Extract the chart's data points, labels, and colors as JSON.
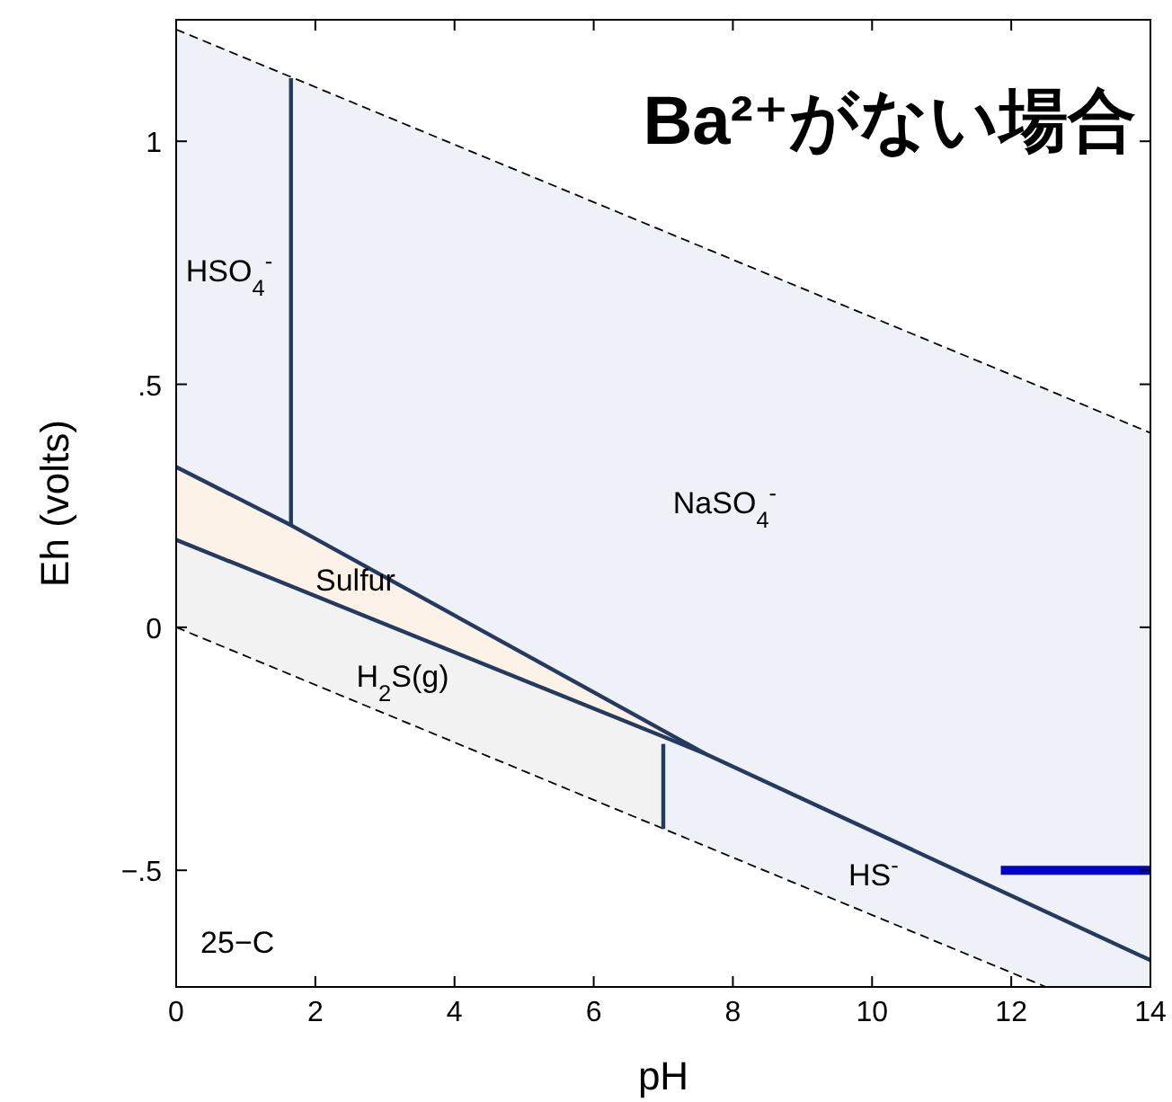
{
  "chart_data": {
    "type": "line",
    "title": "Ba²⁺がない場合",
    "xlabel": "pH",
    "ylabel": "Eh (volts)",
    "xlim": [
      0,
      14
    ],
    "xticks": [
      0,
      2,
      4,
      6,
      8,
      10,
      12,
      14
    ],
    "ylim": [
      -0.74,
      1.25
    ],
    "yticks": [
      {
        "value": -0.5,
        "label": "−.5"
      },
      0,
      {
        "value": 0.5,
        "label": ".5"
      },
      1
    ],
    "grid": false,
    "series": [
      {
        "color": "#000000",
        "line_style": "dashed",
        "x": [
          0,
          12.5,
          14
        ],
        "values": [
          1.23,
          0.49,
          0.4
        ],
        "lower": [
          0,
          -0.74,
          -0.74
        ],
        "upper": [
          1.23,
          0.49,
          0.4
        ]
      },
      {
        "color": "#000000",
        "line_style": "dashed",
        "x": [
          0,
          12.5
        ],
        "values": [
          0,
          -0.74
        ]
      },
      {
        "color": "#243a5e",
        "x": [
          0,
          7.0,
          7.6,
          14
        ],
        "values": [
          0.18,
          -0.225,
          -0.26,
          -0.685
        ],
        "lower": [
          0,
          -0.415,
          null,
          null
        ],
        "upper": [
          0.18,
          -0.225,
          null,
          null
        ]
      },
      {
        "color": "#243a5e",
        "x": [
          0,
          1.65,
          7.6
        ],
        "values": [
          0.33,
          0.21,
          -0.26
        ],
        "lower": [
          0.18,
          0.084,
          -0.26
        ],
        "upper": [
          0.33,
          0.21,
          -0.26
        ]
      },
      {
        "color": "#243a5e",
        "x": [
          1.65,
          1.65
        ],
        "values": [
          1.13,
          0.21
        ]
      },
      {
        "color": "#243a5e",
        "x": [
          7.0,
          7.0
        ],
        "values": [
          -0.24,
          -0.415
        ]
      },
      {
        "color": "#0000cc",
        "x": [
          11.85,
          14
        ],
        "values": [
          -0.5,
          -0.5
        ]
      }
    ],
    "annotations": [
      "HSO$_{4}$$^{-}$",
      "NaSO$_{4}$$^{-}$",
      "Sulfur",
      "H$_{2}$S(g)",
      "HS$^{-}$",
      "25−C"
    ]
  }
}
